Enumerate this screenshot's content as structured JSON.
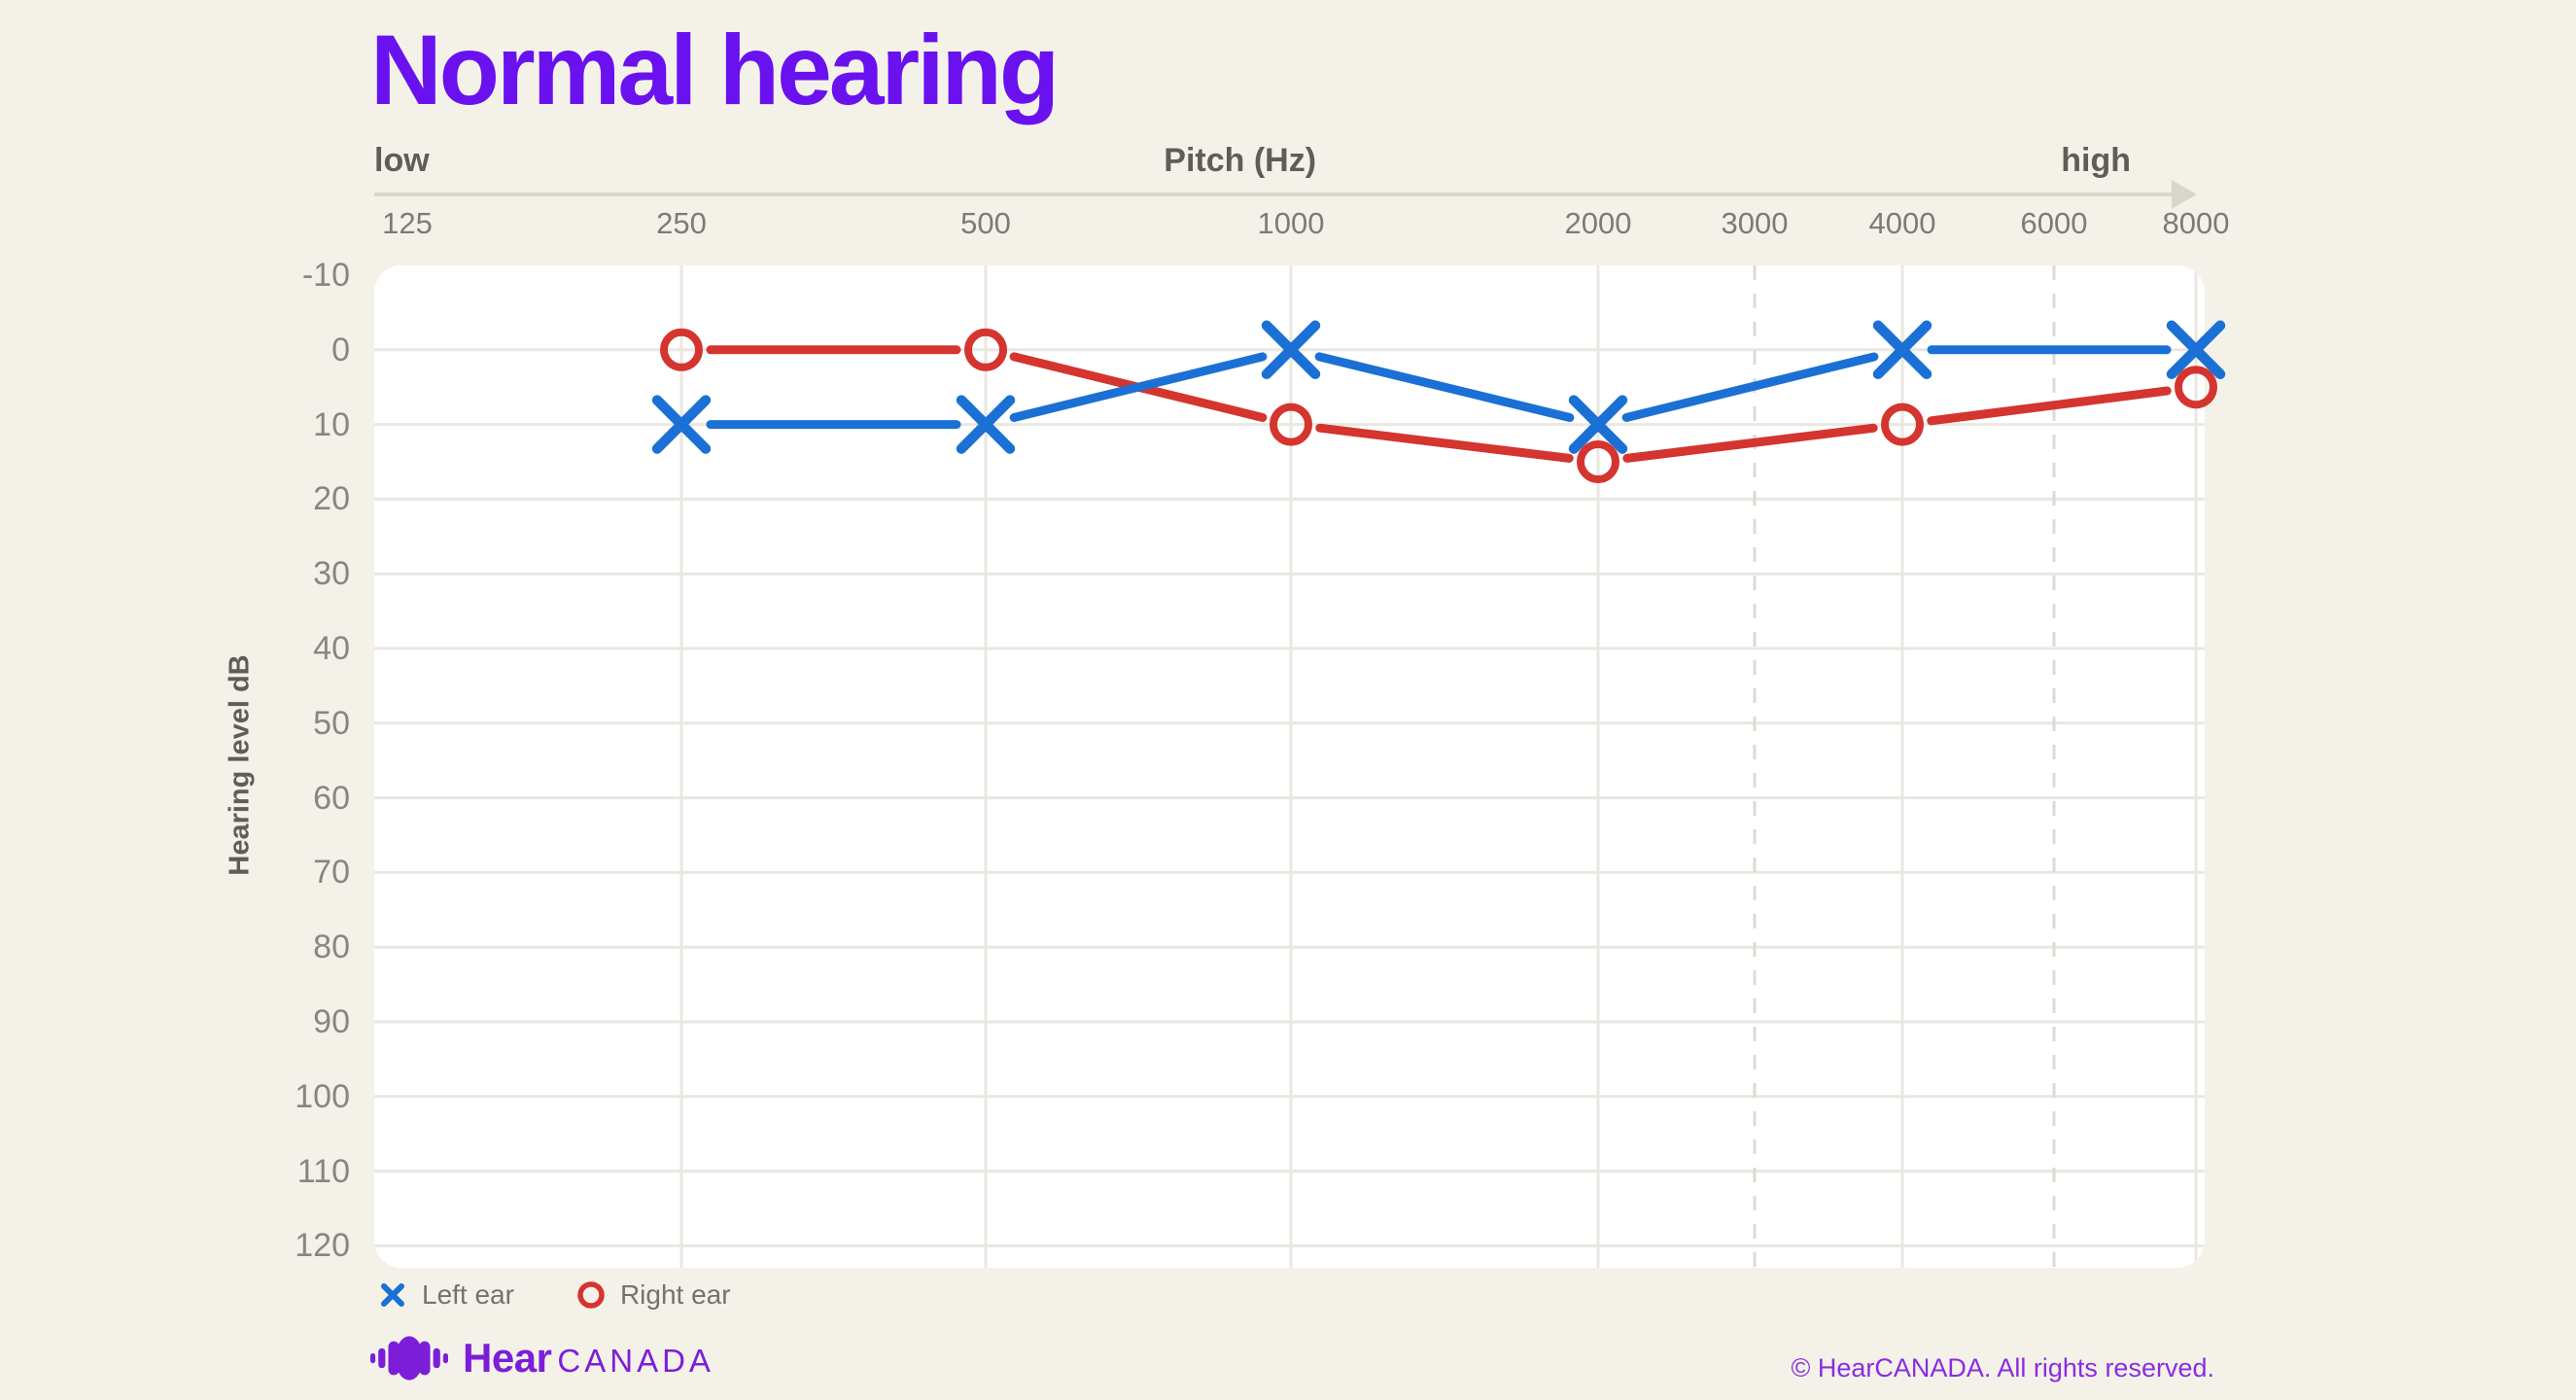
{
  "page": {
    "title": "Normal hearing",
    "background": "#F4F2E8",
    "title_color": "#6A11F0"
  },
  "chart_data": {
    "type": "line",
    "title": "Normal hearing",
    "x_axis": {
      "title": "Pitch (Hz)",
      "low_label": "low",
      "high_label": "high",
      "scale": "log",
      "unit": "Hz",
      "ticks": [
        125,
        250,
        500,
        1000,
        2000,
        3000,
        4000,
        6000,
        8000
      ]
    },
    "y_axis": {
      "label": "Hearing level dB",
      "unit": "dB",
      "min": -10,
      "max": 120,
      "step": 10,
      "inverted": true,
      "ticks": [
        -10,
        0,
        10,
        20,
        30,
        40,
        50,
        60,
        70,
        80,
        90,
        100,
        110,
        120
      ]
    },
    "grid": {
      "solid_x": [
        250,
        500,
        1000,
        2000,
        4000,
        8000
      ],
      "dashed_x": [
        3000,
        6000
      ],
      "horizontal_lines": [
        0,
        10,
        20,
        30,
        40,
        50,
        60,
        70,
        80,
        90,
        100,
        110,
        120
      ]
    },
    "series": [
      {
        "name": "Left ear",
        "marker": "x",
        "color": "#1B70D5",
        "frequencies_hz": [
          250,
          500,
          1000,
          2000,
          4000,
          8000
        ],
        "thresholds_db": [
          10,
          10,
          0,
          10,
          0,
          0
        ]
      },
      {
        "name": "Right ear",
        "marker": "o",
        "color": "#D4352E",
        "frequencies_hz": [
          250,
          500,
          1000,
          2000,
          4000,
          8000
        ],
        "thresholds_db": [
          0,
          0,
          10,
          15,
          10,
          5
        ]
      }
    ],
    "legend_position": "bottom-left"
  },
  "footer": {
    "brand_bold": "Hear",
    "brand_caps": "CANADA",
    "brand_color": "#7C1ED9",
    "copyright": "© HearCANADA. All rights reserved.",
    "copyright_color": "#8C2BE2"
  },
  "colors": {
    "plot_bg": "#FFFFFF",
    "grid": "#E8E7E1",
    "grid_dashed": "#DCDBD3",
    "axis_line": "#DAD7CA",
    "heading_gray": "#5E5E56",
    "tick_gray": "#7C7C74",
    "ytick_gray": "#87877F",
    "legend_text": "#73736D"
  }
}
